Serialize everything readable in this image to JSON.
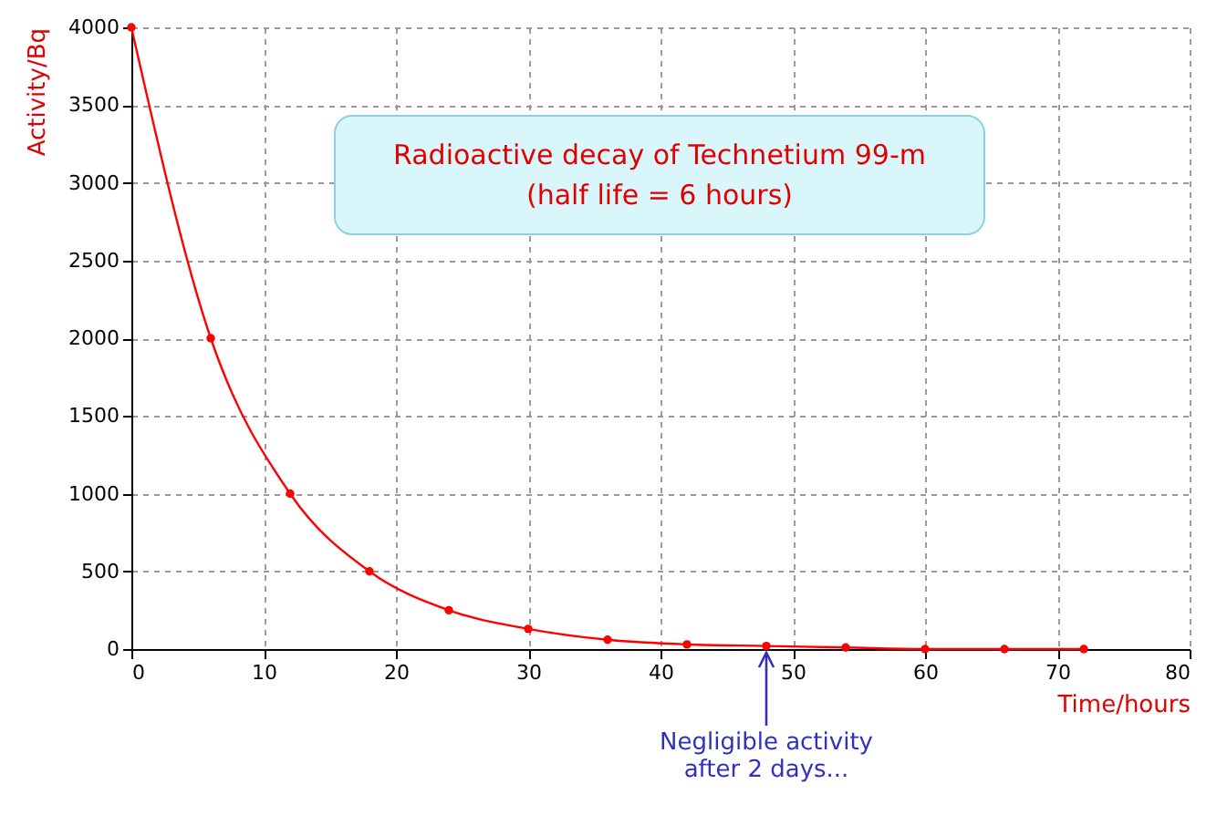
{
  "chart_data": {
    "type": "line",
    "title": "Radioactive decay of Technetium 99-m",
    "subtitle": "(half life = 6 hours)",
    "xlabel": "Time/hours",
    "ylabel": "Activity/Bq",
    "x": [
      0,
      6,
      12,
      18,
      24,
      30,
      36,
      42,
      48,
      54,
      60,
      66,
      72
    ],
    "series": [
      {
        "color": "#ff0000",
        "values": [
          4000,
          2000,
          1000,
          500,
          250,
          130,
          60,
          30,
          20,
          10,
          0,
          0,
          0
        ]
      }
    ],
    "xlim": [
      0,
      80
    ],
    "xticks": [
      0,
      10,
      20,
      30,
      40,
      50,
      60,
      70,
      80
    ],
    "ylim": [
      0,
      4000
    ],
    "yticks": [
      0,
      500,
      1000,
      1500,
      2000,
      2500,
      3000,
      3500,
      4000
    ],
    "grid": true,
    "marker": "circle",
    "line_style": "solid",
    "annotations": [
      {
        "text": "Negligible activity\nafter 2 days...",
        "x": 48,
        "y": 0
      }
    ]
  }
}
